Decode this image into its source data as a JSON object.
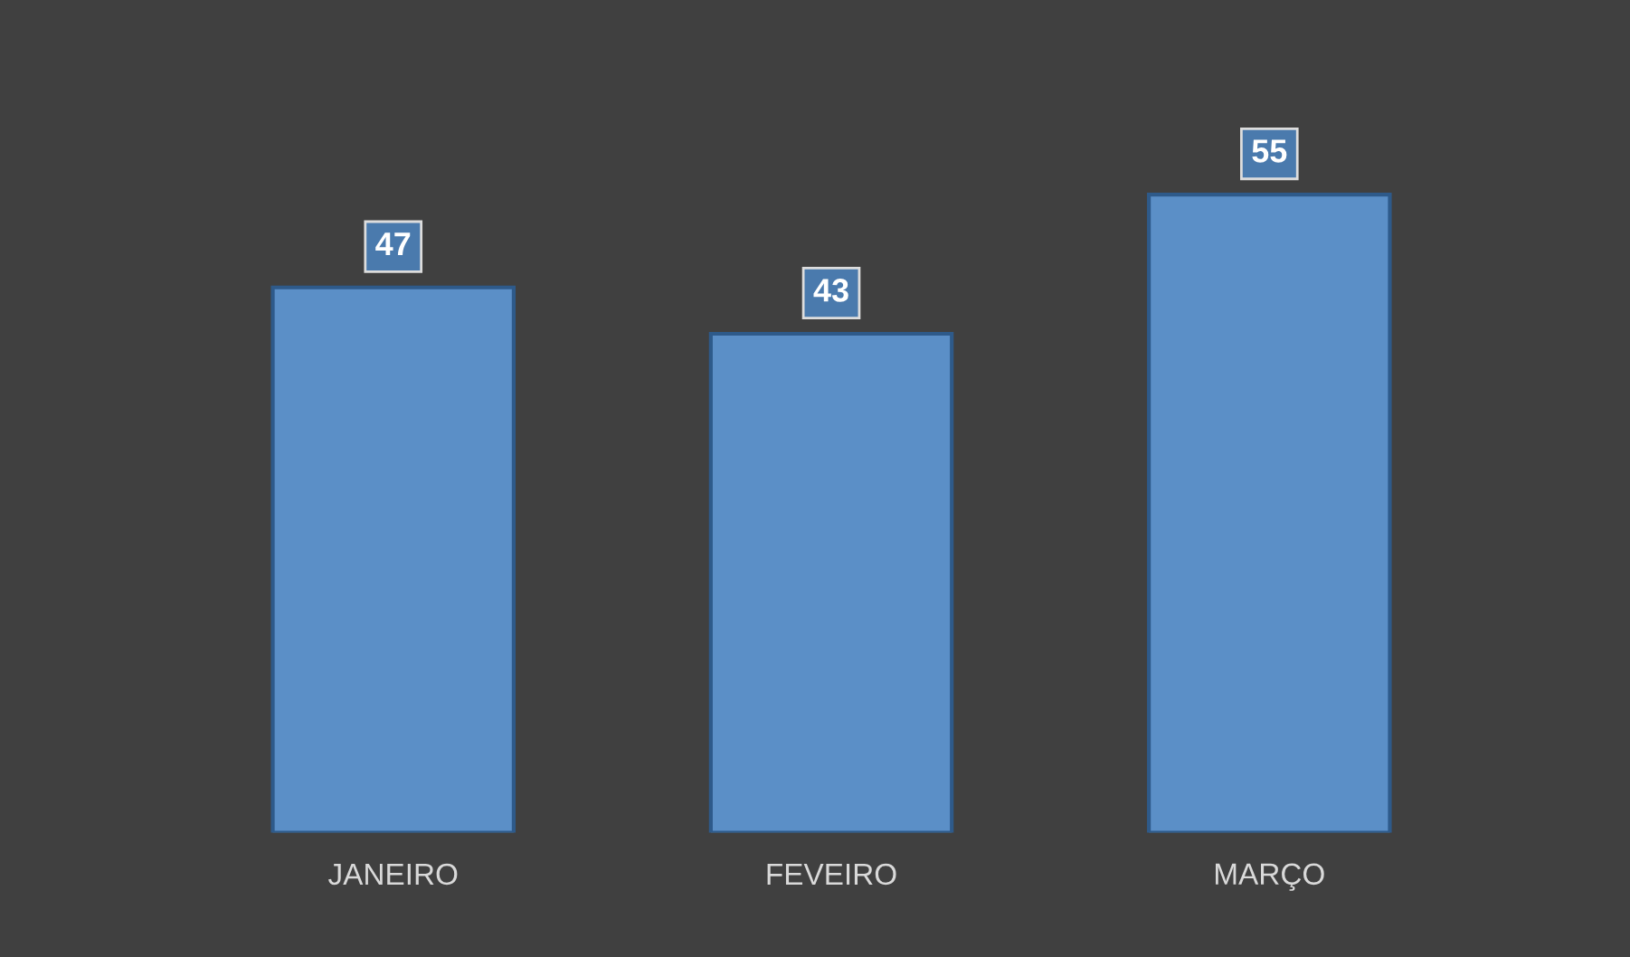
{
  "chart_data": {
    "type": "bar",
    "categories": [
      "JANEIRO",
      "FEVEIRO",
      "MARÇO"
    ],
    "values": [
      47,
      43,
      55
    ],
    "color": "#5b8fc7",
    "data_labels": true,
    "grid": false,
    "legend": false
  }
}
